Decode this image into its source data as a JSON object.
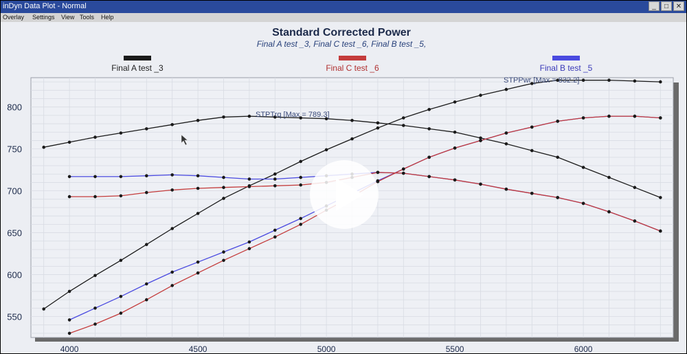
{
  "window": {
    "title": "inDyn Data Plot - Normal",
    "buttons": [
      "_",
      "□",
      "✕"
    ]
  },
  "menu": [
    "Overlay",
    "Settings",
    "View",
    "Tools",
    "Help"
  ],
  "chart_data": {
    "type": "line",
    "title": "Standard Corrected Power",
    "subtitle": "Final A test _3, Final C test _6, Final B test _5,",
    "xlim": [
      3850,
      6350
    ],
    "ylim": [
      525,
      835
    ],
    "x_ticks": [
      "4000",
      "4500",
      "5000",
      "5500",
      "6000"
    ],
    "y_ticks": [
      "550",
      "600",
      "650",
      "700",
      "750",
      "800"
    ],
    "grid": true,
    "legend": [
      {
        "name": "Final A test _3",
        "color": "#1a1a1a"
      },
      {
        "name": "Final C test _6",
        "color": "#c43c3c"
      },
      {
        "name": "Final B test _5",
        "color": "#4a4ae0"
      }
    ],
    "annotations": [
      {
        "text": "STPTrq [Max = 789.3]",
        "x": 4850,
        "y": 792
      },
      {
        "text": "STPPwr [Max = 832.2]",
        "x": 5930,
        "y": 833
      }
    ],
    "series": [
      {
        "name": "Final A test _3",
        "kind": "torque",
        "color": "#1a1a1a",
        "x": [
          3900,
          4000,
          4100,
          4200,
          4300,
          4400,
          4500,
          4600,
          4700,
          4800,
          4900,
          5000,
          5100,
          5200,
          5300,
          5400,
          5500,
          5600,
          5700,
          5800,
          5900,
          6000,
          6100,
          6200,
          6300
        ],
        "y": [
          752,
          758,
          764,
          769,
          774,
          779,
          784,
          788,
          789,
          788,
          787,
          786,
          784,
          781,
          778,
          774,
          770,
          763,
          756,
          748,
          740,
          728,
          716,
          704,
          692
        ]
      },
      {
        "name": "Final A test _3",
        "kind": "power",
        "color": "#1a1a1a",
        "x": [
          3900,
          4000,
          4100,
          4200,
          4300,
          4400,
          4500,
          4600,
          4700,
          4800,
          4900,
          5000,
          5100,
          5200,
          5300,
          5400,
          5500,
          5600,
          5700,
          5800,
          5900,
          6000,
          6100,
          6200,
          6300
        ],
        "y": [
          559,
          580,
          599,
          617,
          636,
          655,
          673,
          691,
          706,
          720,
          735,
          749,
          762,
          775,
          787,
          797,
          806,
          814,
          821,
          828,
          832,
          832,
          832,
          831,
          830
        ]
      },
      {
        "name": "Final B test _5",
        "kind": "torque",
        "color": "#4a4ae0",
        "x": [
          4000,
          4100,
          4200,
          4300,
          4400,
          4500,
          4600,
          4700,
          4800,
          4900,
          5000,
          5100,
          5200,
          5300,
          5400,
          5500,
          5600,
          5700,
          5800,
          5900,
          6000,
          6100,
          6200,
          6300
        ],
        "y": [
          717,
          717,
          717,
          718,
          719,
          718,
          716,
          714,
          714,
          716,
          718,
          720,
          722,
          721,
          717,
          713,
          708,
          702,
          697,
          692,
          685,
          675,
          664,
          652
        ]
      },
      {
        "name": "Final B test _5",
        "kind": "power",
        "color": "#4a4ae0",
        "x": [
          4000,
          4100,
          4200,
          4300,
          4400,
          4500,
          4600,
          4700,
          4800,
          4900,
          5000,
          5100,
          5200,
          5300,
          5400,
          5500,
          5600,
          5700,
          5800,
          5900,
          6000,
          6100,
          6200,
          6300
        ],
        "y": [
          546,
          560,
          574,
          589,
          603,
          615,
          627,
          639,
          653,
          667,
          682,
          697,
          712,
          726,
          740,
          751,
          760,
          769,
          776,
          783,
          787,
          789,
          789,
          787
        ]
      },
      {
        "name": "Final C test _6",
        "kind": "torque",
        "color": "#c43c3c",
        "x": [
          4000,
          4100,
          4200,
          4300,
          4400,
          4500,
          4600,
          4700,
          4800,
          4900,
          5000,
          5100,
          5200,
          5300,
          5400,
          5500,
          5600,
          5700,
          5800,
          5900,
          6000,
          6100,
          6200,
          6300
        ],
        "y": [
          693,
          693,
          694,
          698,
          701,
          703,
          704,
          705,
          706,
          707,
          710,
          716,
          722,
          721,
          717,
          713,
          708,
          702,
          697,
          692,
          685,
          675,
          664,
          652
        ]
      },
      {
        "name": "Final C test _6",
        "kind": "power",
        "color": "#c43c3c",
        "x": [
          4000,
          4100,
          4200,
          4300,
          4400,
          4500,
          4600,
          4700,
          4800,
          4900,
          5000,
          5100,
          5200,
          5300,
          5400,
          5500,
          5600,
          5700,
          5800,
          5900,
          6000,
          6100,
          6200,
          6300
        ],
        "y": [
          530,
          541,
          554,
          570,
          587,
          602,
          617,
          631,
          645,
          660,
          677,
          693,
          711,
          726,
          740,
          751,
          760,
          769,
          776,
          783,
          787,
          789,
          789,
          787
        ]
      }
    ]
  },
  "player": {
    "play_icon": "play-icon"
  }
}
